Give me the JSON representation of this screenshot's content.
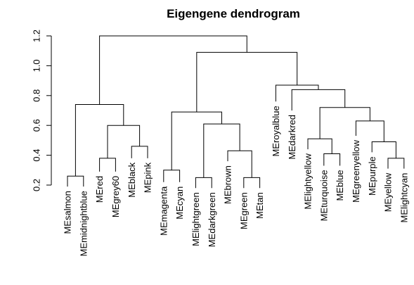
{
  "chart_data": {
    "type": "dendrogram",
    "title": "Eigengene dendrogram",
    "xlabel": "",
    "ylabel": "",
    "ylim": [
      0.2,
      1.2
    ],
    "yticks": [
      0.2,
      0.4,
      0.6,
      0.8,
      1.0,
      1.2
    ],
    "ytick_labels": [
      "0.2",
      "0.4",
      "0.6",
      "0.8",
      "1.0",
      "1.2"
    ],
    "leaves": [
      {
        "label": "MEsalmon",
        "height": 0.19
      },
      {
        "label": "MEmidnightblue",
        "height": 0.19
      },
      {
        "label": "MEred",
        "height": 0.29
      },
      {
        "label": "MEgrey60",
        "height": 0.29
      },
      {
        "label": "MEblack",
        "height": 0.38
      },
      {
        "label": "MEpink",
        "height": 0.38
      },
      {
        "label": "MEmagenta",
        "height": 0.22
      },
      {
        "label": "MEcyan",
        "height": 0.22
      },
      {
        "label": "MElightgreen",
        "height": 0.18
      },
      {
        "label": "MEdarkgreen",
        "height": 0.18
      },
      {
        "label": "MEbrown",
        "height": 0.36
      },
      {
        "label": "MEgreen",
        "height": 0.18
      },
      {
        "label": "MEtan",
        "height": 0.18
      },
      {
        "label": "MEroyalblue",
        "height": 0.76
      },
      {
        "label": "MEdarkred",
        "height": 0.7
      },
      {
        "label": "MElightyellow",
        "height": 0.44
      },
      {
        "label": "MEturquoise",
        "height": 0.33
      },
      {
        "label": "MEblue",
        "height": 0.33
      },
      {
        "label": "MEgreenyellow",
        "height": 0.53
      },
      {
        "label": "MEpurple",
        "height": 0.42
      },
      {
        "label": "MEyellow",
        "height": 0.31
      },
      {
        "label": "MElightcyan",
        "height": 0.31
      }
    ],
    "merges": [
      {
        "a": "L0",
        "b": "L1",
        "height": 0.26
      },
      {
        "a": "L2",
        "b": "L3",
        "height": 0.38
      },
      {
        "a": "L4",
        "b": "L5",
        "height": 0.46
      },
      {
        "a": "M1",
        "b": "M2",
        "height": 0.6
      },
      {
        "a": "M0",
        "b": "M3",
        "height": 0.74
      },
      {
        "a": "L6",
        "b": "L7",
        "height": 0.3
      },
      {
        "a": "L8",
        "b": "L9",
        "height": 0.25
      },
      {
        "a": "L11",
        "b": "L12",
        "height": 0.25
      },
      {
        "a": "L10",
        "b": "M7",
        "height": 0.43
      },
      {
        "a": "M6",
        "b": "M8",
        "height": 0.61
      },
      {
        "a": "M5",
        "b": "M9",
        "height": 0.69
      },
      {
        "a": "L16",
        "b": "L17",
        "height": 0.41
      },
      {
        "a": "L15",
        "b": "M11",
        "height": 0.51
      },
      {
        "a": "L20",
        "b": "L21",
        "height": 0.38
      },
      {
        "a": "L19",
        "b": "M13",
        "height": 0.49
      },
      {
        "a": "L18",
        "b": "M14",
        "height": 0.63
      },
      {
        "a": "M12",
        "b": "M15",
        "height": 0.72
      },
      {
        "a": "L14",
        "b": "M16",
        "height": 0.84
      },
      {
        "a": "L13",
        "b": "M17",
        "height": 0.87
      },
      {
        "a": "M10",
        "b": "M18",
        "height": 1.09
      },
      {
        "a": "M4",
        "b": "M19",
        "height": 1.2
      }
    ]
  }
}
